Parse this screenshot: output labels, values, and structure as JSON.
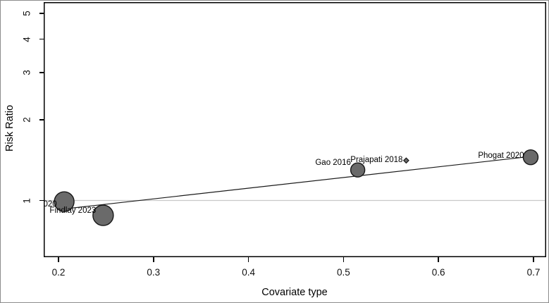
{
  "chart_data": {
    "type": "scatter",
    "subtype": "meta-regression-bubble-plot",
    "title": "",
    "xlabel": "Covariate type",
    "ylabel": "Risk Ratio",
    "x_ticks": [
      0.2,
      0.3,
      0.4,
      0.5,
      0.6,
      0.7
    ],
    "y_ticks": [
      1,
      2,
      3,
      4,
      5
    ],
    "y_scale": "log",
    "xlim": [
      0.185,
      0.715
    ],
    "ylim": [
      0.62,
      5.5
    ],
    "grid": false,
    "legend": "none",
    "reference_line": {
      "rr": 1.0
    },
    "regression_line": {
      "x": [
        0.206,
        0.697
      ],
      "rr": [
        0.93,
        1.46
      ]
    },
    "studies": [
      {
        "label": "020",
        "x": 0.206,
        "rr": 0.99,
        "marker": "circle",
        "radius_px": 14,
        "label_offset": [
          -20,
          4
        ]
      },
      {
        "label": "Findlay 2023",
        "x": 0.247,
        "rr": 0.88,
        "marker": "circle",
        "radius_px": 14.5,
        "label_offset": [
          -43,
          -6.5
        ]
      },
      {
        "label": "Gao 2016",
        "x": 0.515,
        "rr": 1.3,
        "marker": "circle",
        "radius_px": 10,
        "label_offset": [
          -35,
          -10
        ]
      },
      {
        "label": "Prajapati 2018",
        "x": 0.566,
        "rr": 1.41,
        "marker": "diamond",
        "radius_px": 2.8,
        "label_offset": [
          -42,
          -1
        ]
      },
      {
        "label": "Phogat 2020",
        "x": 0.697,
        "rr": 1.45,
        "marker": "circle",
        "radius_px": 10.5,
        "label_offset": [
          -42,
          -2
        ]
      }
    ],
    "colors": {
      "bubble_fill": "#6a6a6a",
      "bubble_stroke": "#161616",
      "regression_line": "#1a1a1a",
      "reference_line": "#c9c9c9",
      "axis": "#000000",
      "background": "#ffffff"
    }
  }
}
